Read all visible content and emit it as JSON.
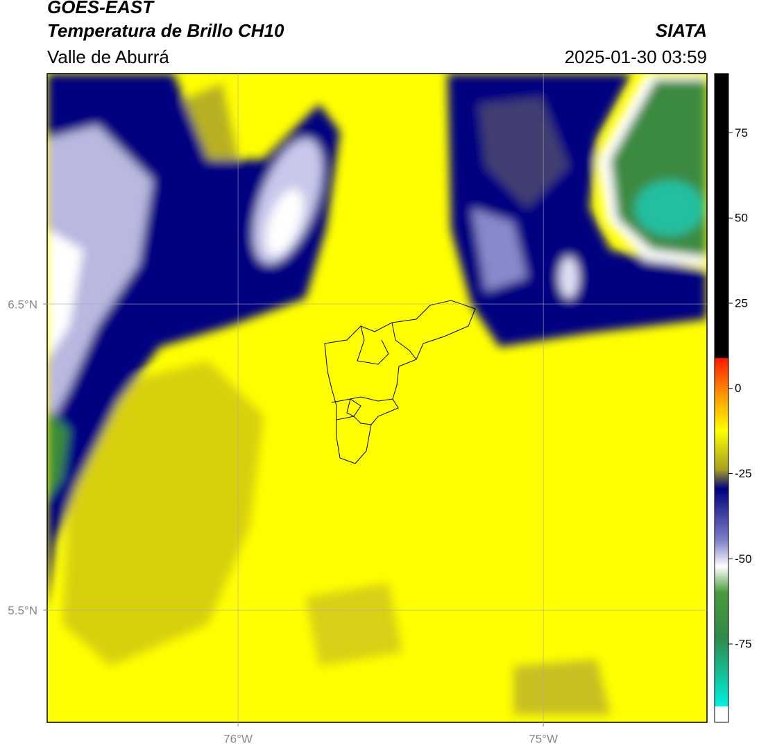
{
  "header": {
    "title": "GOES-EAST",
    "subtitle": "Temperatura de Brillo CH10",
    "region": "Valle de Aburrá",
    "source": "SIATA",
    "timestamp": "2025-01-30 03:59"
  },
  "map": {
    "lonlim": [
      -76.625,
      -74.464
    ],
    "latlim": [
      5.133,
      7.253
    ],
    "lonticks": [
      {
        "value": -76,
        "label": "76°W"
      },
      {
        "value": -75,
        "label": "75°W"
      }
    ],
    "latticks": [
      {
        "value": 6.5,
        "label": "6.5°N"
      },
      {
        "value": 5.5,
        "label": "5.5°N"
      }
    ],
    "grid": true
  },
  "colorbar": {
    "range": [
      -98,
      92.4
    ],
    "ticks": [
      75,
      50,
      25,
      0,
      -25,
      -50,
      -75
    ]
  }
}
